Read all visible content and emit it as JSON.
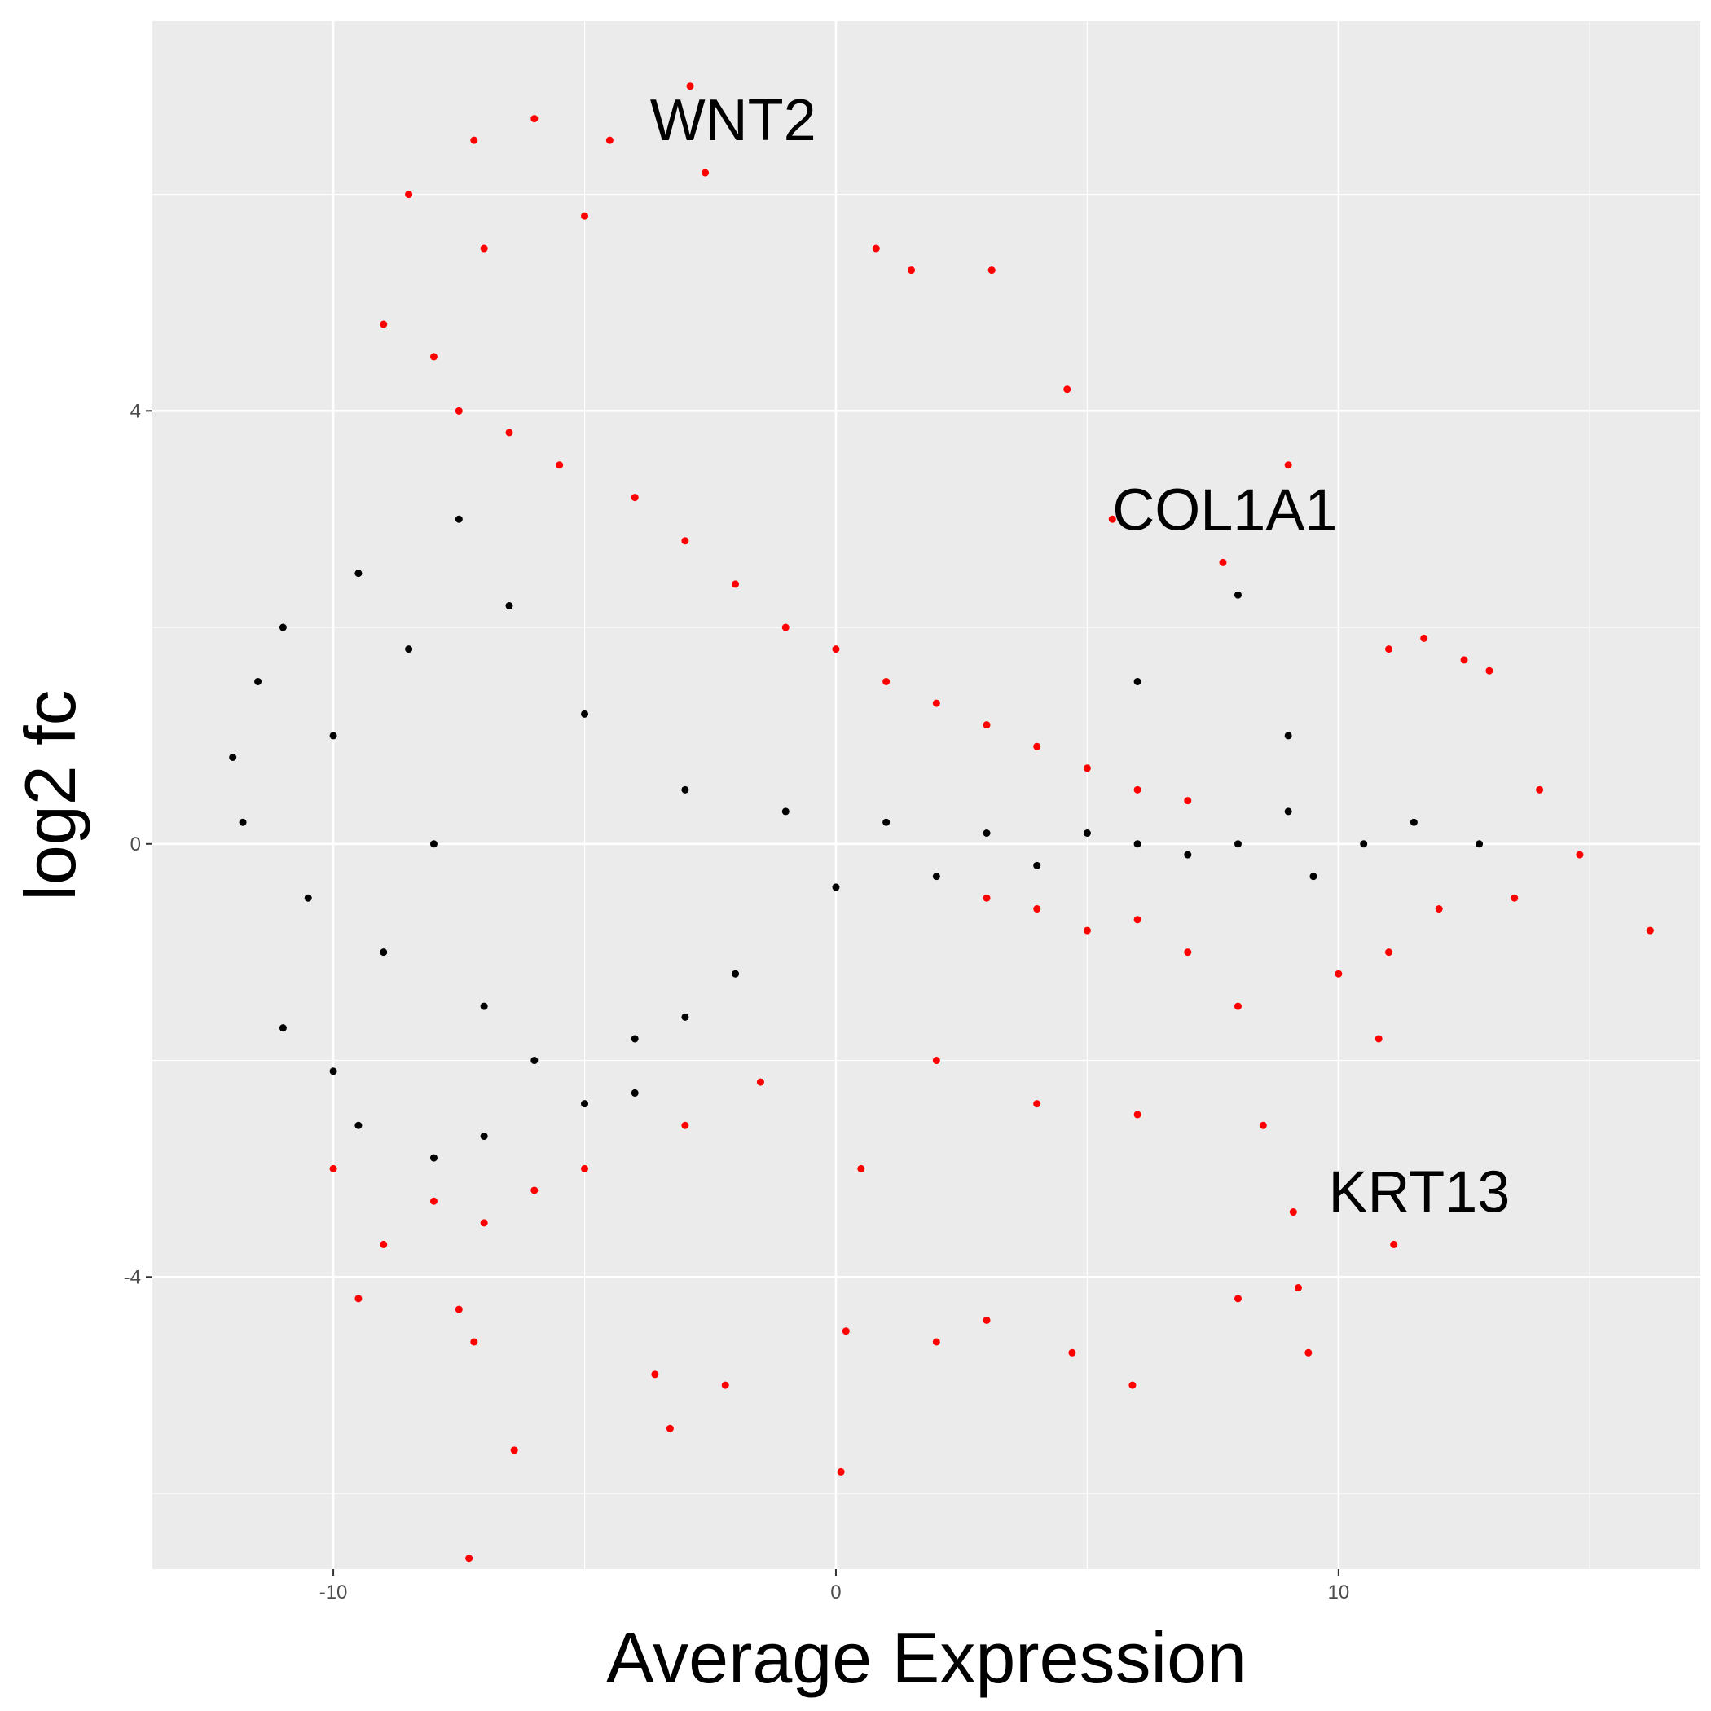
{
  "chart_data": {
    "type": "scatter",
    "title": "",
    "xlabel": "Average Expression",
    "ylabel": "log2 fc",
    "xlim": [
      -13.6,
      17.2
    ],
    "ylim": [
      -6.7,
      7.6
    ],
    "x_ticks": [
      -10,
      0,
      10
    ],
    "x_tick_labels": [
      "-10",
      "0",
      "10"
    ],
    "y_ticks": [
      -4,
      0,
      4
    ],
    "y_tick_labels": [
      "-4",
      "0",
      "4"
    ],
    "grid": true,
    "legend": "none",
    "colors": {
      "panel": "#ebebeb",
      "grid": "#ffffff",
      "significant": "#ff0000",
      "not_significant": "#000000"
    },
    "series": [
      {
        "color": "#000000",
        "points": [
          [
            -12.0,
            0.8
          ],
          [
            -11.8,
            0.2
          ],
          [
            -11.5,
            1.5
          ],
          [
            -11.0,
            2.0
          ],
          [
            -10.5,
            -0.5
          ],
          [
            -10.0,
            1.0
          ],
          [
            -9.5,
            2.5
          ],
          [
            -9.0,
            -1.0
          ],
          [
            -8.5,
            1.8
          ],
          [
            -8.0,
            0.0
          ],
          [
            -7.5,
            3.0
          ],
          [
            -7.0,
            -1.5
          ],
          [
            -6.5,
            2.2
          ],
          [
            -6.0,
            -2.0
          ],
          [
            -5.0,
            1.2
          ],
          [
            -4.0,
            -1.8
          ],
          [
            -3.0,
            0.5
          ],
          [
            -2.0,
            -1.2
          ],
          [
            -1.0,
            0.3
          ],
          [
            0.0,
            -0.4
          ],
          [
            1.0,
            0.2
          ],
          [
            2.0,
            -0.3
          ],
          [
            3.0,
            0.1
          ],
          [
            4.0,
            -0.2
          ],
          [
            5.0,
            0.1
          ],
          [
            6.0,
            0.0
          ],
          [
            7.0,
            -0.1
          ],
          [
            8.0,
            0.0
          ],
          [
            8.0,
            2.3
          ],
          [
            9.0,
            0.3
          ],
          [
            10.5,
            0.0
          ],
          [
            11.5,
            0.2
          ],
          [
            12.8,
            0.0
          ],
          [
            -11.0,
            -1.7
          ],
          [
            -10.0,
            -2.1
          ],
          [
            -9.5,
            -2.6
          ],
          [
            -8.0,
            -2.9
          ],
          [
            -7.0,
            -2.7
          ],
          [
            -5.0,
            -2.4
          ],
          [
            -4.0,
            -2.3
          ],
          [
            -3.0,
            -1.6
          ],
          [
            6.0,
            1.5
          ],
          [
            9.0,
            1.0
          ],
          [
            9.5,
            -0.3
          ]
        ]
      },
      {
        "color": "#ff0000",
        "points": [
          [
            -7.2,
            6.5
          ],
          [
            -6.0,
            6.7
          ],
          [
            -4.5,
            6.5
          ],
          [
            -2.9,
            7.0
          ],
          [
            -2.6,
            6.2
          ],
          [
            -8.5,
            6.0
          ],
          [
            -7.0,
            5.5
          ],
          [
            -5.0,
            5.8
          ],
          [
            -9.0,
            4.8
          ],
          [
            -8.0,
            4.5
          ],
          [
            -7.5,
            4.0
          ],
          [
            -6.5,
            3.8
          ],
          [
            -5.5,
            3.5
          ],
          [
            -4.0,
            3.2
          ],
          [
            -3.0,
            2.8
          ],
          [
            -2.0,
            2.4
          ],
          [
            -1.0,
            2.0
          ],
          [
            0.0,
            1.8
          ],
          [
            1.0,
            1.5
          ],
          [
            2.0,
            1.3
          ],
          [
            3.0,
            1.1
          ],
          [
            4.0,
            0.9
          ],
          [
            5.0,
            0.7
          ],
          [
            6.0,
            0.5
          ],
          [
            7.0,
            0.4
          ],
          [
            0.8,
            5.5
          ],
          [
            1.5,
            5.3
          ],
          [
            3.1,
            5.3
          ],
          [
            4.6,
            4.2
          ],
          [
            9.0,
            3.5
          ],
          [
            5.5,
            3.0
          ],
          [
            7.7,
            2.6
          ],
          [
            11.0,
            1.8
          ],
          [
            11.7,
            1.9
          ],
          [
            12.5,
            1.7
          ],
          [
            13.0,
            1.6
          ],
          [
            14.0,
            0.5
          ],
          [
            14.8,
            -0.1
          ],
          [
            16.2,
            -0.8
          ],
          [
            13.5,
            -0.5
          ],
          [
            12.0,
            -0.6
          ],
          [
            11.0,
            -1.0
          ],
          [
            10.0,
            -1.2
          ],
          [
            3.0,
            -0.5
          ],
          [
            4.0,
            -0.6
          ],
          [
            5.0,
            -0.8
          ],
          [
            6.0,
            -0.7
          ],
          [
            7.0,
            -1.0
          ],
          [
            8.0,
            -1.5
          ],
          [
            2.0,
            -2.0
          ],
          [
            4.0,
            -2.4
          ],
          [
            6.0,
            -2.5
          ],
          [
            8.5,
            -2.6
          ],
          [
            10.8,
            -1.8
          ],
          [
            -3.0,
            -2.6
          ],
          [
            -5.0,
            -3.0
          ],
          [
            -6.0,
            -3.2
          ],
          [
            -7.0,
            -3.5
          ],
          [
            -8.0,
            -3.3
          ],
          [
            -9.0,
            -3.7
          ],
          [
            -10.0,
            -3.0
          ],
          [
            -7.5,
            -4.3
          ],
          [
            -7.2,
            -4.6
          ],
          [
            -6.4,
            -5.6
          ],
          [
            -3.6,
            -4.9
          ],
          [
            -3.3,
            -5.4
          ],
          [
            -2.2,
            -5.0
          ],
          [
            0.1,
            -5.8
          ],
          [
            -7.3,
            -6.6
          ],
          [
            0.2,
            -4.5
          ],
          [
            2.0,
            -4.6
          ],
          [
            3.0,
            -4.4
          ],
          [
            4.7,
            -4.7
          ],
          [
            5.9,
            -5.0
          ],
          [
            9.4,
            -4.7
          ],
          [
            9.2,
            -4.1
          ],
          [
            8.0,
            -4.2
          ],
          [
            11.1,
            -3.7
          ],
          [
            9.1,
            -3.4
          ],
          [
            -1.5,
            -2.2
          ],
          [
            -9.5,
            -4.2
          ],
          [
            0.5,
            -3.0
          ]
        ]
      }
    ],
    "annotations": [
      {
        "text": "WNT2",
        "x": -3.7,
        "y": 6.5
      },
      {
        "text": "COL1A1",
        "x": 5.5,
        "y": 2.9
      },
      {
        "text": "KRT13",
        "x": 9.8,
        "y": -3.4
      }
    ]
  }
}
